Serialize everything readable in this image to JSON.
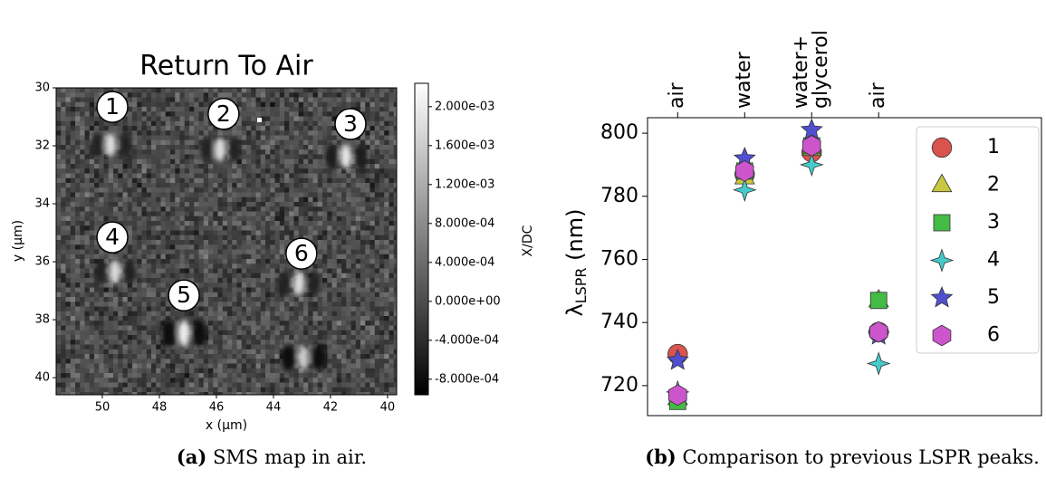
{
  "chart_data": [
    {
      "type": "heatmap",
      "title": "Return To Air",
      "xlabel": "x (µm)",
      "ylabel": "y (µm)",
      "xlim": [
        51.62,
        39.68
      ],
      "xticks": [
        50,
        48,
        46,
        44,
        42,
        40
      ],
      "ylim": [
        40.59,
        30
      ],
      "yticks": [
        30,
        32,
        34,
        36,
        38,
        40
      ],
      "colorbar": {
        "label": "X/DC",
        "lim": [
          -0.00096,
          0.00224
        ],
        "ticks": [
          {
            "value": 0.002,
            "label": "2.000e-03"
          },
          {
            "value": 0.0016,
            "label": "1.600e-03"
          },
          {
            "value": 0.0012,
            "label": "1.200e-03"
          },
          {
            "value": 0.0008,
            "label": "8.000e-04"
          },
          {
            "value": 0.0004,
            "label": "4.000e-04"
          },
          {
            "value": 0,
            "label": "0.000e+00"
          },
          {
            "value": -0.0004,
            "label": "-4.000e-04"
          },
          {
            "value": -0.0008,
            "label": "-8.000e-04"
          }
        ]
      },
      "annotations": [
        {
          "text": "1",
          "x": 49.65,
          "y": 30.66
        },
        {
          "text": "2",
          "x": 45.75,
          "y": 30.9
        },
        {
          "text": "3",
          "x": 41.3,
          "y": 31.25
        },
        {
          "text": "4",
          "x": 49.65,
          "y": 35.16
        },
        {
          "text": "5",
          "x": 47.14,
          "y": 37.16
        },
        {
          "text": "6",
          "x": 43.02,
          "y": 35.72
        }
      ],
      "caption_label": "(a)",
      "caption": "SMS map in air."
    },
    {
      "type": "scatter",
      "ylabel": [
        "λ",
        "LSPR",
        " (nm)"
      ],
      "categories": [
        "air",
        "water",
        "water+\nglycerol",
        "air"
      ],
      "xlim": [
        -0.45,
        5.43
      ],
      "ylim": [
        710.5,
        804.9
      ],
      "yticks": [
        720,
        740,
        760,
        780,
        800
      ],
      "legend": "upper right",
      "series": [
        {
          "name": "1",
          "marker": "circle",
          "color": "#d9534f",
          "values": [
            730,
            787,
            794,
            737
          ]
        },
        {
          "name": "2",
          "marker": "triangle",
          "color": "#c8c840",
          "values": [
            716,
            786,
            795,
            747
          ]
        },
        {
          "name": "3",
          "marker": "square",
          "color": "#44bb44",
          "values": [
            715,
            788,
            796,
            747
          ]
        },
        {
          "name": "4",
          "marker": "star4",
          "color": "#44cccc",
          "values": [
            718,
            782,
            790,
            727
          ]
        },
        {
          "name": "5",
          "marker": "star5",
          "color": "#4f4fd0",
          "values": [
            728,
            792,
            801,
            736
          ]
        },
        {
          "name": "6",
          "marker": "hexagon",
          "color": "#cc55cc",
          "values": [
            717,
            788,
            796,
            737
          ]
        }
      ],
      "caption_label": "(b)",
      "caption": "Comparison to previous LSPR peaks."
    }
  ]
}
